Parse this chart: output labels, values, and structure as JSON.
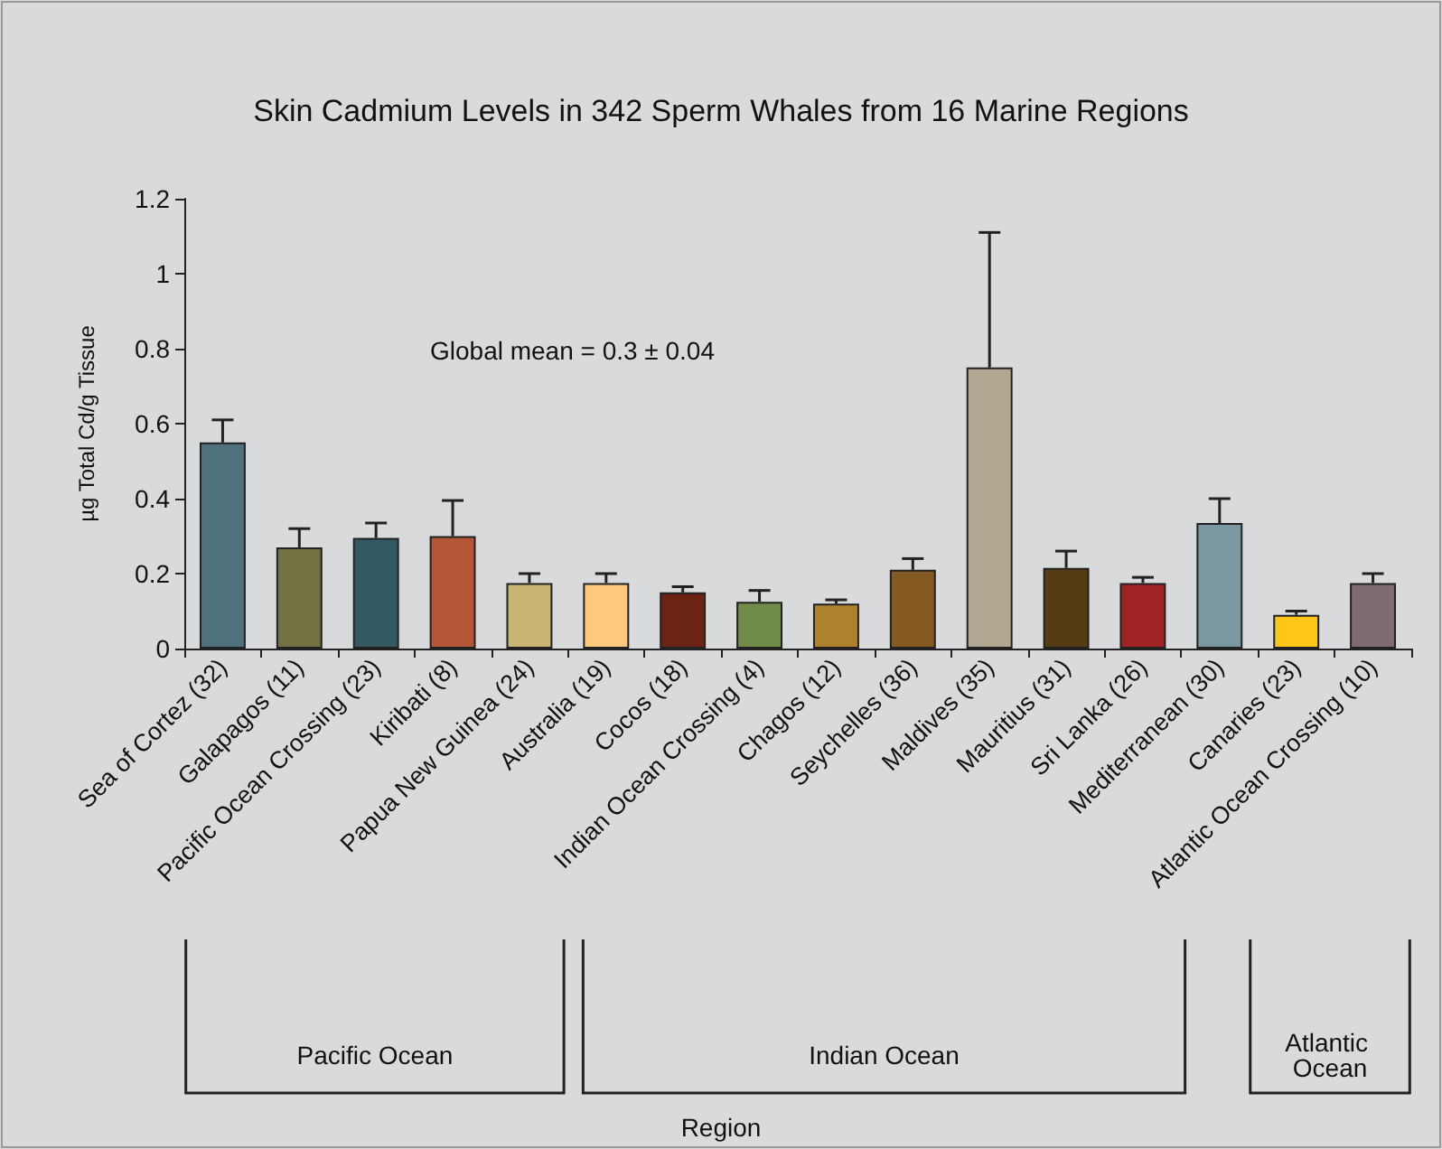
{
  "chart_data": {
    "type": "bar",
    "title": "Skin Cadmium Levels in 342 Sperm Whales from 16 Marine Regions",
    "ylabel": "µg Total Cd/g Tissue",
    "categories": [
      "Sea of Cortez (32)",
      "Galapagos (11)",
      "Pacific Ocean Crossing (23)",
      "Kiribati (8)",
      "Papua New Guinea (24)",
      "Australia (19)",
      "Cocos (18)",
      "Indian Ocean Crossing (4)",
      "Chagos (12)",
      "Seychelles (36)",
      "Maldives (35)",
      "Mauritius (31)",
      "Sri Lanka (26)",
      "Mediterranean (30)",
      "Canaries (23)",
      "Atlantic Ocean Crossing (10)"
    ],
    "values": [
      0.55,
      0.27,
      0.295,
      0.3,
      0.175,
      0.175,
      0.15,
      0.125,
      0.12,
      0.21,
      0.75,
      0.215,
      0.175,
      0.335,
      0.09,
      0.175
    ],
    "errors": [
      [
        0.55,
        0.61
      ],
      [
        0.27,
        0.32
      ],
      [
        0.295,
        0.335
      ],
      [
        0.3,
        0.395
      ],
      [
        0.175,
        0.2
      ],
      [
        0.175,
        0.2
      ],
      [
        0.15,
        0.165
      ],
      [
        0.125,
        0.155
      ],
      [
        0.12,
        0.13
      ],
      [
        0.21,
        0.24
      ],
      [
        0.75,
        1.11
      ],
      [
        0.215,
        0.26
      ],
      [
        0.175,
        0.19
      ],
      [
        0.335,
        0.4
      ],
      [
        0.09,
        0.1
      ],
      [
        0.175,
        0.2
      ]
    ],
    "colors": [
      "#50727f",
      "#737042",
      "#335a62",
      "#b45538",
      "#c9b672",
      "#fec97a",
      "#6b2413",
      "#718b48",
      "#af832d",
      "#855a22",
      "#b2a891",
      "#553c15",
      "#9e2322",
      "#7a97a2",
      "#fec718",
      "#7e6b73"
    ],
    "ylim": [
      0,
      1.2
    ],
    "yticks": [
      0,
      0.2,
      0.4,
      0.6,
      0.8,
      1,
      1.2
    ],
    "grid": false,
    "annotations": [
      "Global mean = 0.3 ± 0.04",
      "Pacific Ocean",
      "Indian Ocean",
      "Atlantic Ocean",
      "Region"
    ]
  }
}
